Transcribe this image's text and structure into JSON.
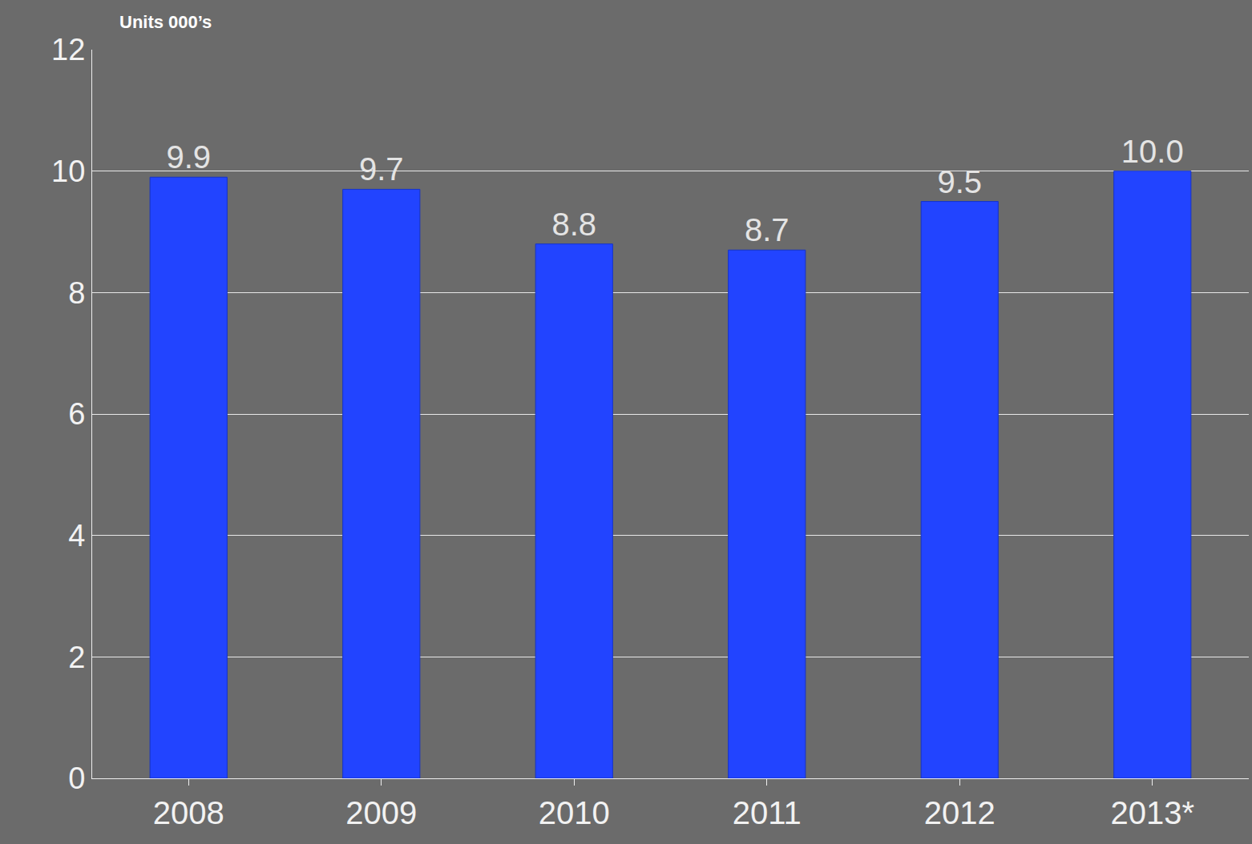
{
  "chart_data": {
    "type": "bar",
    "ylabel": "Units 000’s",
    "categories": [
      "2008",
      "2009",
      "2010",
      "2011",
      "2012",
      "2013*"
    ],
    "values": [
      9.9,
      9.7,
      8.8,
      8.7,
      9.5,
      10.0
    ],
    "value_labels": [
      "9.9",
      "9.7",
      "8.8",
      "8.7",
      "9.5",
      "10.0"
    ],
    "data_labels": true,
    "color": "#2244ff",
    "ylim": [
      0,
      12
    ],
    "yticks": [
      0,
      2,
      4,
      6,
      8,
      10,
      12
    ],
    "grid": true
  }
}
